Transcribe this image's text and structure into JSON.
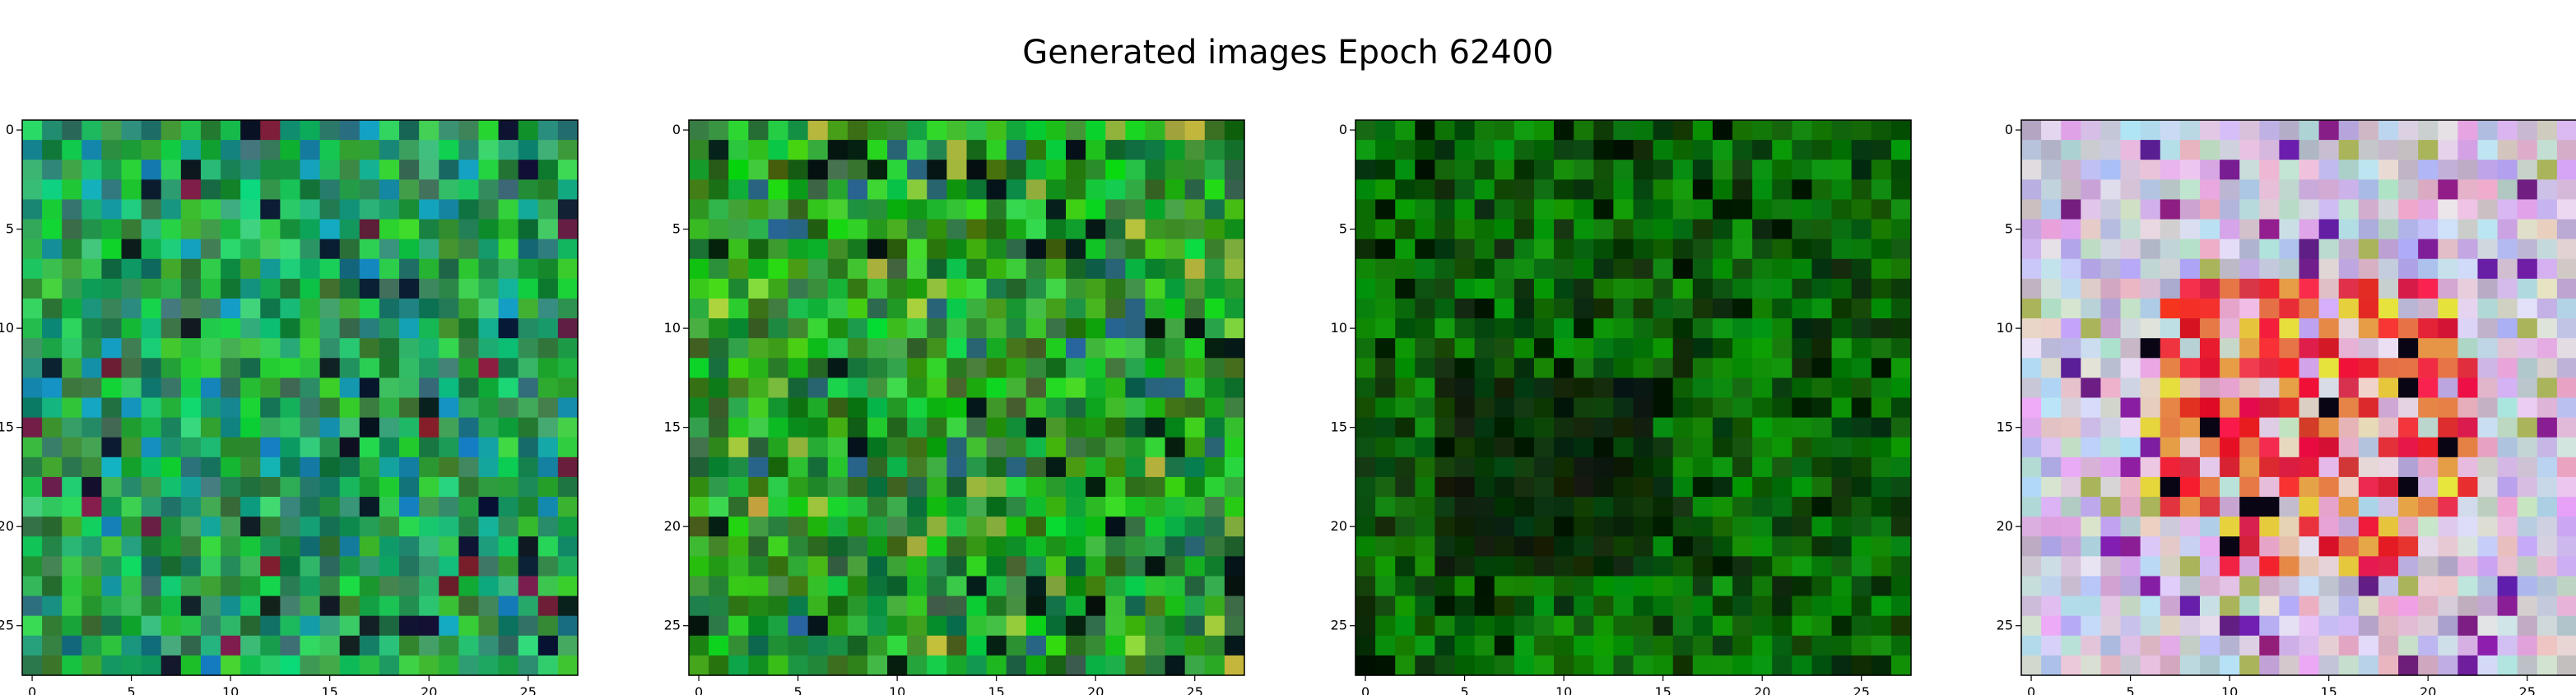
{
  "figure": {
    "title": "Generated images Epoch 62400"
  },
  "chart_data": {
    "type": "heatmap",
    "title": "Generated images Epoch 62400",
    "grid": false,
    "images": [
      {
        "name": "",
        "size": [
          28,
          28
        ],
        "theme": "green-teal",
        "xticks": [
          0,
          5,
          10,
          15,
          20,
          25
        ],
        "yticks": [
          0,
          5,
          10,
          15,
          20,
          25
        ],
        "xlim": [
          -0.5,
          27.5
        ],
        "ylim": [
          27.5,
          -0.5
        ]
      },
      {
        "name": "",
        "size": [
          28,
          28
        ],
        "theme": "green-mixed",
        "xticks": [
          0,
          5,
          10,
          15,
          20,
          25
        ],
        "yticks": [
          0,
          5,
          10,
          15,
          20,
          25
        ],
        "xlim": [
          -0.5,
          27.5
        ],
        "ylim": [
          27.5,
          -0.5
        ]
      },
      {
        "name": "",
        "size": [
          28,
          28
        ],
        "theme": "dark-green",
        "xticks": [
          0,
          5,
          10,
          15,
          20,
          25
        ],
        "yticks": [
          0,
          5,
          10,
          15,
          20,
          25
        ],
        "xlim": [
          -0.5,
          27.5
        ],
        "ylim": [
          27.5,
          -0.5
        ]
      },
      {
        "name": "",
        "size": [
          28,
          28
        ],
        "theme": "pastel-red-center",
        "xticks": [
          0,
          5,
          10,
          15,
          20,
          25
        ],
        "yticks": [
          0,
          5,
          10,
          15,
          20,
          25
        ],
        "xlim": [
          -0.5,
          27.5
        ],
        "ylim": [
          27.5,
          -0.5
        ]
      }
    ]
  }
}
